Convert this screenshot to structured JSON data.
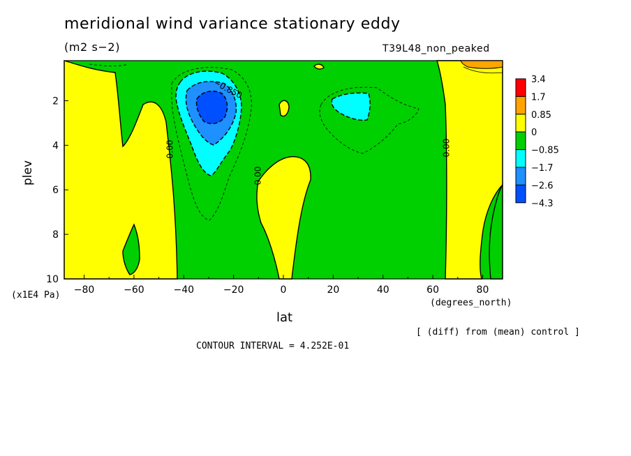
{
  "header": {
    "title": "meridional wind variance  stationary eddy",
    "units": "(m2 s−2)",
    "run_name": "T39L48_non_peaked"
  },
  "footer": {
    "diff_note": "[ (diff) from (mean) control ]",
    "contour_interval": "CONTOUR INTERVAL = 4.252E-01"
  },
  "colors": {
    "c_gt_1_7": "#ff0000",
    "c_0_85_1_7": "#ffa500",
    "c_0_0_85": "#ffff00",
    "c_m0_85_0": "#00d000",
    "c_m1_7_m0_85": "#00ffff",
    "c_m2_6_m1_7": "#1e90ff",
    "c_lt_m2_6": "#0050ff"
  },
  "chart_data": {
    "type": "heatmap",
    "title": "meridional wind variance  stationary eddy",
    "xlabel": "lat",
    "xunit": "(degrees_north)",
    "ylabel": "plev",
    "yunit": "(x1E4 Pa)",
    "xlim": [
      -88,
      88
    ],
    "ylim": [
      10,
      0.2
    ],
    "x_ticks": [
      -80,
      -60,
      -40,
      -20,
      0,
      20,
      40,
      60,
      80
    ],
    "x_tick_labels": [
      "−80",
      "−60",
      "−40",
      "−20",
      "0",
      "20",
      "40",
      "60",
      "80"
    ],
    "y_ticks": [
      2,
      4,
      6,
      8,
      10
    ],
    "y_tick_labels": [
      "2",
      "4",
      "6",
      "8",
      "10"
    ],
    "colorbar_labels": [
      "3.4",
      "1.7",
      "0.85",
      "0",
      "−0.85",
      "−1.7",
      "−2.6",
      "−4.3"
    ],
    "contour_labels": [
      "−0.850",
      "0.00",
      "0.00",
      "0.00"
    ],
    "min_region": {
      "lat": -30,
      "plev": 2.2,
      "value_range": "< −2.6"
    },
    "features": [
      {
        "desc": "negative lobe",
        "lat_range": [
          -45,
          -18
        ],
        "plev_range": [
          0.5,
          7.5
        ]
      },
      {
        "desc": "negative lobe",
        "lat_range": [
          18,
          55
        ],
        "plev_range": [
          1.2,
          4.0
        ]
      },
      {
        "desc": "positive region",
        "lat_range": [
          63,
          88
        ],
        "plev_range": [
          0.2,
          10
        ]
      }
    ]
  }
}
